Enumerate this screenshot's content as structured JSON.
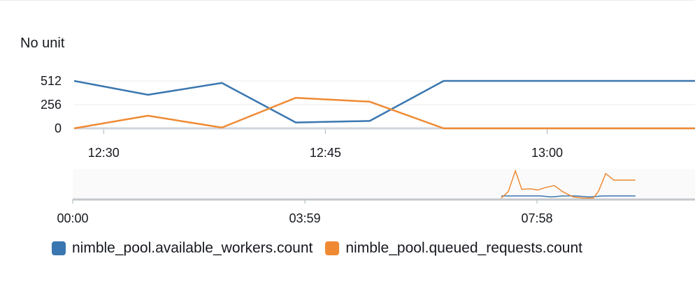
{
  "unit_label": "No unit",
  "chart_data": {
    "type": "line",
    "ylabel": "No unit",
    "yticks": [
      0,
      256,
      512
    ],
    "ylim": [
      0,
      512
    ],
    "xlim": [
      12.4667,
      13.1667
    ],
    "xticks": [
      {
        "value": 12.5,
        "label": "12:30"
      },
      {
        "value": 12.75,
        "label": "12:45"
      },
      {
        "value": 13.0,
        "label": "13:00"
      }
    ],
    "series": [
      {
        "name": "nimble_pool.available_workers.count",
        "color": "#3a77b0",
        "x": [
          12.4667,
          12.55,
          12.6333,
          12.7167,
          12.8,
          12.8833,
          12.9667,
          13.05,
          13.1667
        ],
        "values": [
          512,
          362,
          490,
          63,
          80,
          512,
          512,
          512,
          512
        ]
      },
      {
        "name": "nimble_pool.queued_requests.count",
        "color": "#ef8a33",
        "x": [
          12.4667,
          12.55,
          12.6333,
          12.7167,
          12.8,
          12.8833,
          12.9667,
          13.05,
          13.1667
        ],
        "values": [
          0,
          136,
          8,
          330,
          288,
          0,
          0,
          0,
          0
        ]
      }
    ],
    "overview": {
      "xticks": [
        "00:00",
        "03:59",
        "07:58"
      ],
      "xlim": [
        0,
        11.5
      ],
      "ylim": [
        0,
        512
      ],
      "series": [
        {
          "name": "nimble_pool.available_workers.count",
          "color": "#3a77b0",
          "x": [
            7.92,
            8.2,
            8.45,
            8.65,
            8.85,
            9.05,
            9.3,
            9.55,
            9.8,
            10.1,
            10.4
          ],
          "values": [
            40,
            40,
            40,
            40,
            20,
            40,
            40,
            20,
            40,
            40,
            40
          ]
        },
        {
          "name": "nimble_pool.queued_requests.count",
          "color": "#ef8a33",
          "x": [
            7.92,
            8.05,
            8.18,
            8.3,
            8.45,
            8.6,
            8.72,
            8.9,
            9.05,
            9.25,
            9.45,
            9.62,
            9.72,
            9.85,
            10.0,
            10.4
          ],
          "values": [
            0,
            120,
            500,
            160,
            170,
            150,
            190,
            230,
            120,
            20,
            0,
            0,
            130,
            450,
            330,
            330
          ]
        }
      ]
    }
  }
}
